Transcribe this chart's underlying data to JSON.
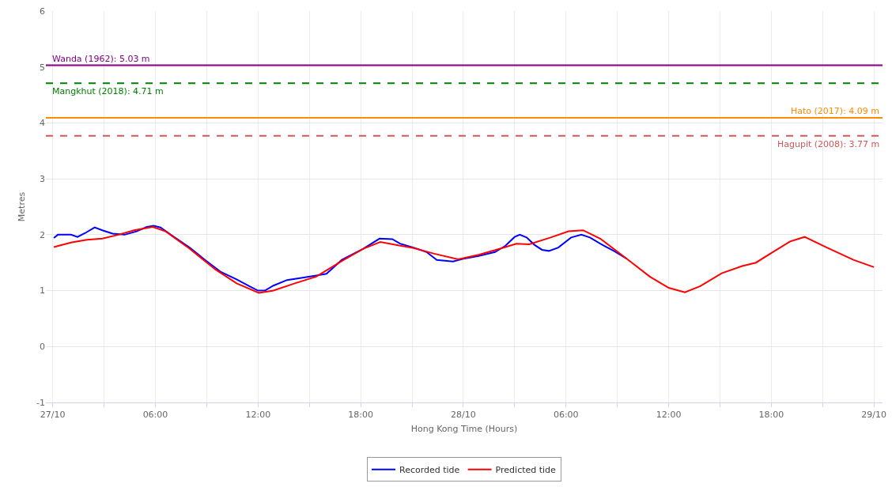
{
  "chart_data": {
    "type": "line",
    "xlabel": "Hong Kong Time (Hours)",
    "ylabel": "Metres",
    "xlim": [
      "--10-26T23:36",
      "--10-29T00:30"
    ],
    "xticks": [
      {
        "value": "--10-27T00:00",
        "label": "27/10"
      },
      {
        "value": "--10-27T03:00",
        "label": null
      },
      {
        "value": "--10-27T06:00",
        "label": "06:00"
      },
      {
        "value": "--10-27T09:00",
        "label": null
      },
      {
        "value": "--10-27T12:00",
        "label": "12:00"
      },
      {
        "value": "--10-27T15:00",
        "label": null
      },
      {
        "value": "--10-27T18:00",
        "label": "18:00"
      },
      {
        "value": "--10-27T21:00",
        "label": null
      },
      {
        "value": "--10-28T00:00",
        "label": "28/10"
      },
      {
        "value": "--10-28T03:00",
        "label": null
      },
      {
        "value": "--10-28T06:00",
        "label": "06:00"
      },
      {
        "value": "--10-28T09:00",
        "label": null
      },
      {
        "value": "--10-28T12:00",
        "label": "12:00"
      },
      {
        "value": "--10-28T15:00",
        "label": null
      },
      {
        "value": "--10-28T18:00",
        "label": "18:00"
      },
      {
        "value": "--10-28T21:00",
        "label": null
      },
      {
        "value": "--10-29T00:00",
        "label": "29/10"
      }
    ],
    "ylim": [
      -1,
      6
    ],
    "yticks": [
      -1,
      0,
      1,
      2,
      3,
      4,
      5,
      6
    ],
    "grid": true,
    "legend": "bottom",
    "marker": "none",
    "line_style": "solid",
    "series": [
      {
        "name": "Recorded tide",
        "color": "#0000ff",
        "x": [
          "--10-27T00:04",
          "--10-27T00:18",
          "--10-27T01:04",
          "--10-27T01:27",
          "--10-27T01:54",
          "--10-27T02:27",
          "--10-27T02:54",
          "--10-27T03:30",
          "--10-27T04:12",
          "--10-27T04:54",
          "--10-27T05:30",
          "--10-27T05:54",
          "--10-27T06:18",
          "--10-27T07:03",
          "--10-27T08:00",
          "--10-27T08:54",
          "--10-27T09:51",
          "--10-27T10:45",
          "--10-27T11:33",
          "--10-27T12:00",
          "--10-27T12:24",
          "--10-27T12:54",
          "--10-27T13:42",
          "--10-27T14:36",
          "--10-27T15:24",
          "--10-27T16:00",
          "--10-27T16:54",
          "--10-27T18:09",
          "--10-27T19:06",
          "--10-27T19:51",
          "--10-27T20:18",
          "--10-27T21:12",
          "--10-27T21:51",
          "--10-27T22:27",
          "--10-27T23:24",
          "--10-28T00:00",
          "--10-28T00:54",
          "--10-28T01:51",
          "--10-28T02:27",
          "--10-28T03:00",
          "--10-28T03:18",
          "--10-28T03:42",
          "--10-28T04:09",
          "--10-28T04:36",
          "--10-28T05:00",
          "--10-28T05:33",
          "--10-28T06:18",
          "--10-28T06:54",
          "--10-28T07:24",
          "--10-28T08:00",
          "--10-28T08:48",
          "--10-28T09:33"
        ],
        "values": [
          1.94,
          2.0,
          2.0,
          1.96,
          2.03,
          2.13,
          2.08,
          2.02,
          2.0,
          2.06,
          2.14,
          2.16,
          2.13,
          1.97,
          1.77,
          1.55,
          1.33,
          1.2,
          1.07,
          1.0,
          1.0,
          1.09,
          1.19,
          1.23,
          1.27,
          1.3,
          1.55,
          1.75,
          1.93,
          1.92,
          1.84,
          1.76,
          1.69,
          1.55,
          1.52,
          1.57,
          1.62,
          1.69,
          1.8,
          1.96,
          2.0,
          1.95,
          1.82,
          1.73,
          1.71,
          1.77,
          1.95,
          2.0,
          1.95,
          1.84,
          1.71,
          1.57
        ]
      },
      {
        "name": "Predicted tide",
        "color": "#ff0000",
        "x": [
          "--10-27T00:04",
          "--10-27T01:04",
          "--10-27T02:00",
          "--10-27T02:54",
          "--10-27T03:51",
          "--10-27T04:45",
          "--10-27T05:51",
          "--10-27T06:36",
          "--10-27T08:00",
          "--10-27T09:30",
          "--10-27T10:45",
          "--10-27T12:03",
          "--10-27T12:54",
          "--10-27T14:09",
          "--10-27T15:24",
          "--10-27T16:54",
          "--10-27T18:09",
          "--10-27T19:09",
          "--10-27T21:06",
          "--10-27T22:18",
          "--10-27T23:42",
          "--10-28T00:54",
          "--10-28T02:09",
          "--10-28T03:06",
          "--10-28T03:51",
          "--10-28T05:06",
          "--10-28T06:09",
          "--10-28T07:00",
          "--10-28T08:00",
          "--10-28T09:33",
          "--10-28T10:54",
          "--10-28T12:00",
          "--10-28T12:57",
          "--10-28T13:51",
          "--10-28T15:06",
          "--10-28T16:18",
          "--10-28T17:06",
          "--10-28T18:12",
          "--10-28T19:06",
          "--10-28T19:57",
          "--10-28T21:15",
          "--10-28T22:48",
          "--10-29T00:00"
        ],
        "values": [
          1.78,
          1.86,
          1.91,
          1.93,
          2.0,
          2.08,
          2.14,
          2.06,
          1.75,
          1.38,
          1.13,
          0.96,
          1.0,
          1.13,
          1.25,
          1.53,
          1.75,
          1.87,
          1.76,
          1.66,
          1.56,
          1.64,
          1.75,
          1.84,
          1.83,
          1.95,
          2.06,
          2.08,
          1.93,
          1.57,
          1.25,
          1.05,
          0.97,
          1.08,
          1.31,
          1.44,
          1.5,
          1.71,
          1.88,
          1.96,
          1.77,
          1.55,
          1.42
        ]
      }
    ],
    "ref_lines": [
      {
        "axis": "y",
        "value": 5.03,
        "label": "Wanda (1962): 5.03 m",
        "color": "#800080",
        "line_style": "solid"
      },
      {
        "axis": "y",
        "value": 4.71,
        "label": "Mangkhut (2018): 4.71 m",
        "color": "#008000",
        "line_style": "dashed"
      },
      {
        "axis": "y",
        "value": 4.09,
        "label": "Hato (2017): 4.09 m",
        "color": "#ff8c00",
        "line_style": "solid"
      },
      {
        "axis": "y",
        "value": 3.77,
        "label": "Hagupit (2008): 3.77 m",
        "color": "#d25757",
        "line_style": "dashed"
      }
    ]
  }
}
